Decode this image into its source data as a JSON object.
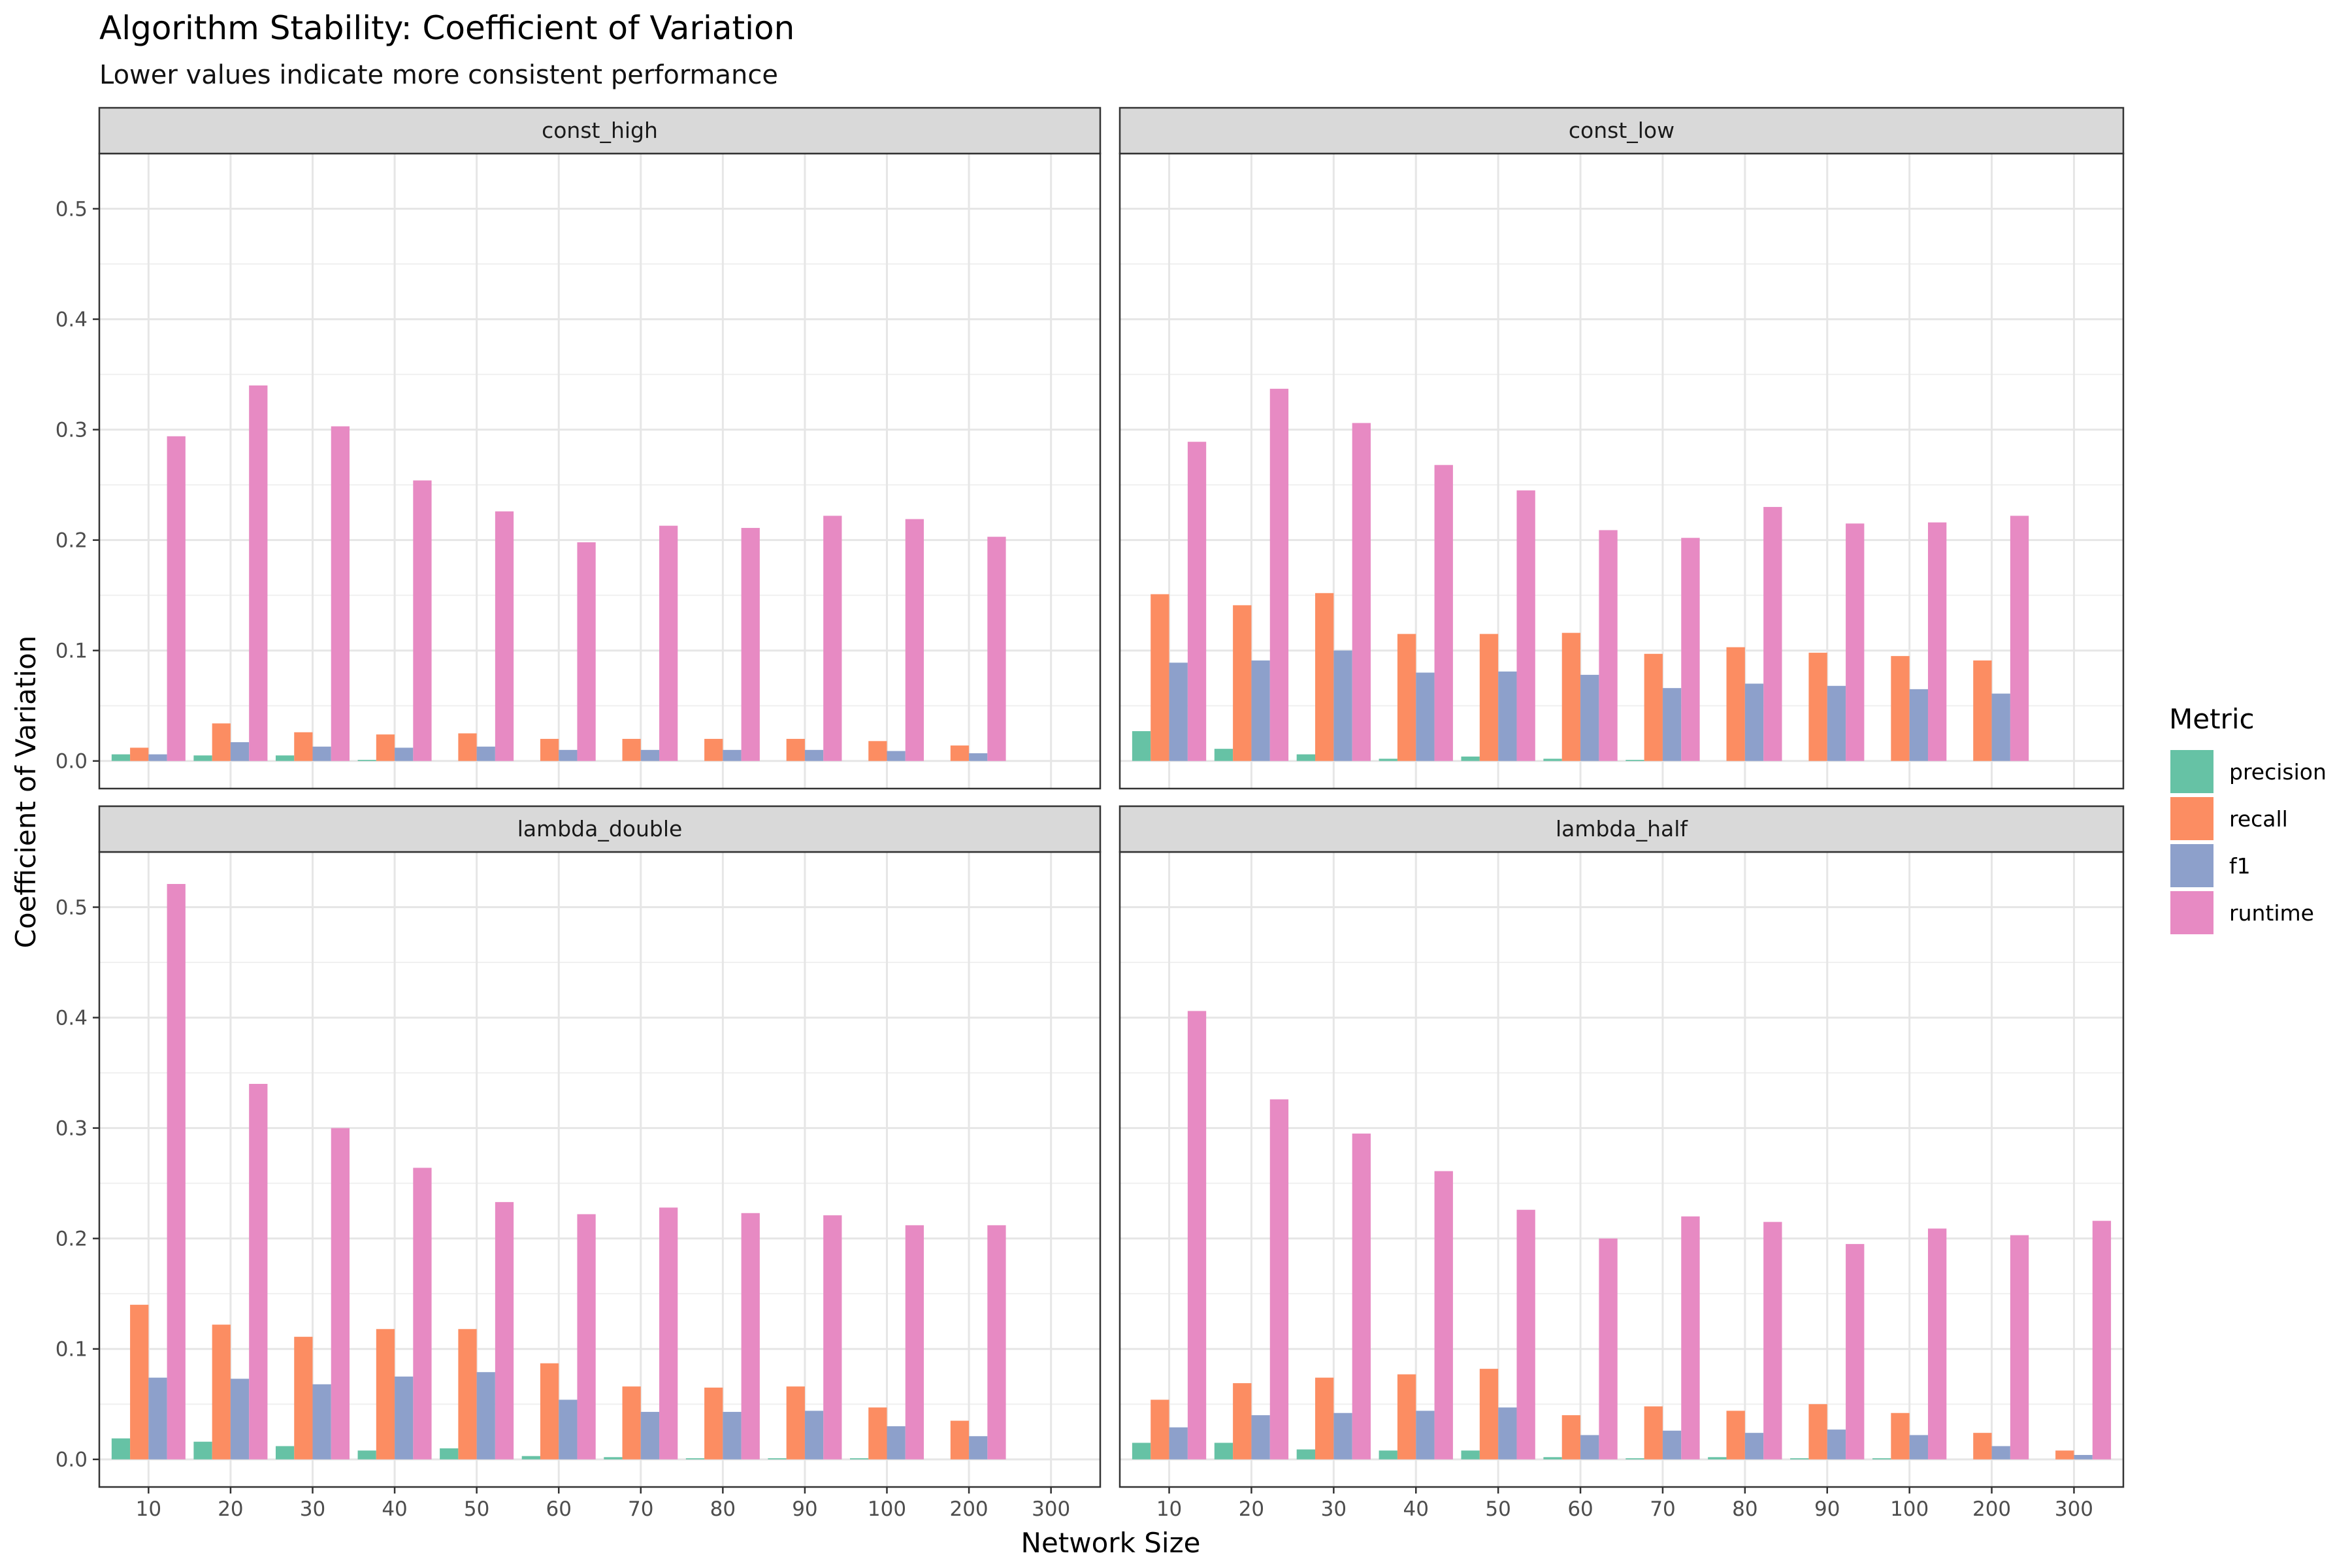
{
  "title": "Algorithm Stability: Coefficient of Variation",
  "subtitle": "Lower values indicate more consistent performance",
  "chart_data": {
    "type": "bar",
    "xlabel": "Network Size",
    "ylabel": "Coefficient of Variation",
    "ylim": [
      -0.025,
      0.55
    ],
    "yticks": [
      "0.0",
      "0.1",
      "0.2",
      "0.3",
      "0.4",
      "0.5"
    ],
    "categories": [
      "10",
      "20",
      "30",
      "40",
      "50",
      "60",
      "70",
      "80",
      "90",
      "100",
      "200",
      "300"
    ],
    "legend": {
      "title": "Metric",
      "position": "right",
      "entries": [
        {
          "name": "precision",
          "color": "#66C2A5"
        },
        {
          "name": "recall",
          "color": "#FC8D62"
        },
        {
          "name": "f1",
          "color": "#8DA0CB"
        },
        {
          "name": "runtime",
          "color": "#E78AC3"
        }
      ]
    },
    "grid": true,
    "panels": [
      {
        "label": "const_high",
        "series": [
          {
            "name": "precision",
            "values": [
              0.006,
              0.005,
              0.005,
              0.001,
              0.0,
              0.0,
              0.0,
              0.0,
              0.0,
              0.0,
              0.0,
              null
            ]
          },
          {
            "name": "recall",
            "values": [
              0.012,
              0.034,
              0.026,
              0.024,
              0.025,
              0.02,
              0.02,
              0.02,
              0.02,
              0.018,
              0.014,
              null
            ]
          },
          {
            "name": "f1",
            "values": [
              0.006,
              0.017,
              0.013,
              0.012,
              0.013,
              0.01,
              0.01,
              0.01,
              0.01,
              0.009,
              0.007,
              null
            ]
          },
          {
            "name": "runtime",
            "values": [
              0.294,
              0.34,
              0.303,
              0.254,
              0.226,
              0.198,
              0.213,
              0.211,
              0.222,
              0.219,
              0.203,
              null
            ]
          }
        ]
      },
      {
        "label": "const_low",
        "series": [
          {
            "name": "precision",
            "values": [
              0.027,
              0.011,
              0.006,
              0.002,
              0.004,
              0.002,
              0.001,
              0.0,
              0.0,
              0.0,
              0.0,
              null
            ]
          },
          {
            "name": "recall",
            "values": [
              0.151,
              0.141,
              0.152,
              0.115,
              0.115,
              0.116,
              0.097,
              0.103,
              0.098,
              0.095,
              0.091,
              null
            ]
          },
          {
            "name": "f1",
            "values": [
              0.089,
              0.091,
              0.1,
              0.08,
              0.081,
              0.078,
              0.066,
              0.07,
              0.068,
              0.065,
              0.061,
              null
            ]
          },
          {
            "name": "runtime",
            "values": [
              0.289,
              0.337,
              0.306,
              0.268,
              0.245,
              0.209,
              0.202,
              0.23,
              0.215,
              0.216,
              0.222,
              null
            ]
          }
        ]
      },
      {
        "label": "lambda_double",
        "series": [
          {
            "name": "precision",
            "values": [
              0.019,
              0.016,
              0.012,
              0.008,
              0.01,
              0.003,
              0.002,
              0.001,
              0.001,
              0.001,
              0.0,
              null
            ]
          },
          {
            "name": "recall",
            "values": [
              0.14,
              0.122,
              0.111,
              0.118,
              0.118,
              0.087,
              0.066,
              0.065,
              0.066,
              0.047,
              0.035,
              null
            ]
          },
          {
            "name": "f1",
            "values": [
              0.074,
              0.073,
              0.068,
              0.075,
              0.079,
              0.054,
              0.043,
              0.043,
              0.044,
              0.03,
              0.021,
              null
            ]
          },
          {
            "name": "runtime",
            "values": [
              0.521,
              0.34,
              0.3,
              0.264,
              0.233,
              0.222,
              0.228,
              0.223,
              0.221,
              0.212,
              0.212,
              null
            ]
          }
        ]
      },
      {
        "label": "lambda_half",
        "series": [
          {
            "name": "precision",
            "values": [
              0.015,
              0.015,
              0.009,
              0.008,
              0.008,
              0.002,
              0.001,
              0.002,
              0.001,
              0.001,
              0.0,
              0.0
            ]
          },
          {
            "name": "recall",
            "values": [
              0.054,
              0.069,
              0.074,
              0.077,
              0.082,
              0.04,
              0.048,
              0.044,
              0.05,
              0.042,
              0.024,
              0.008
            ]
          },
          {
            "name": "f1",
            "values": [
              0.029,
              0.04,
              0.042,
              0.044,
              0.047,
              0.022,
              0.026,
              0.024,
              0.027,
              0.022,
              0.012,
              0.004
            ]
          },
          {
            "name": "runtime",
            "values": [
              0.406,
              0.326,
              0.295,
              0.261,
              0.226,
              0.2,
              0.22,
              0.215,
              0.195,
              0.209,
              0.203,
              0.216
            ]
          }
        ]
      }
    ]
  }
}
